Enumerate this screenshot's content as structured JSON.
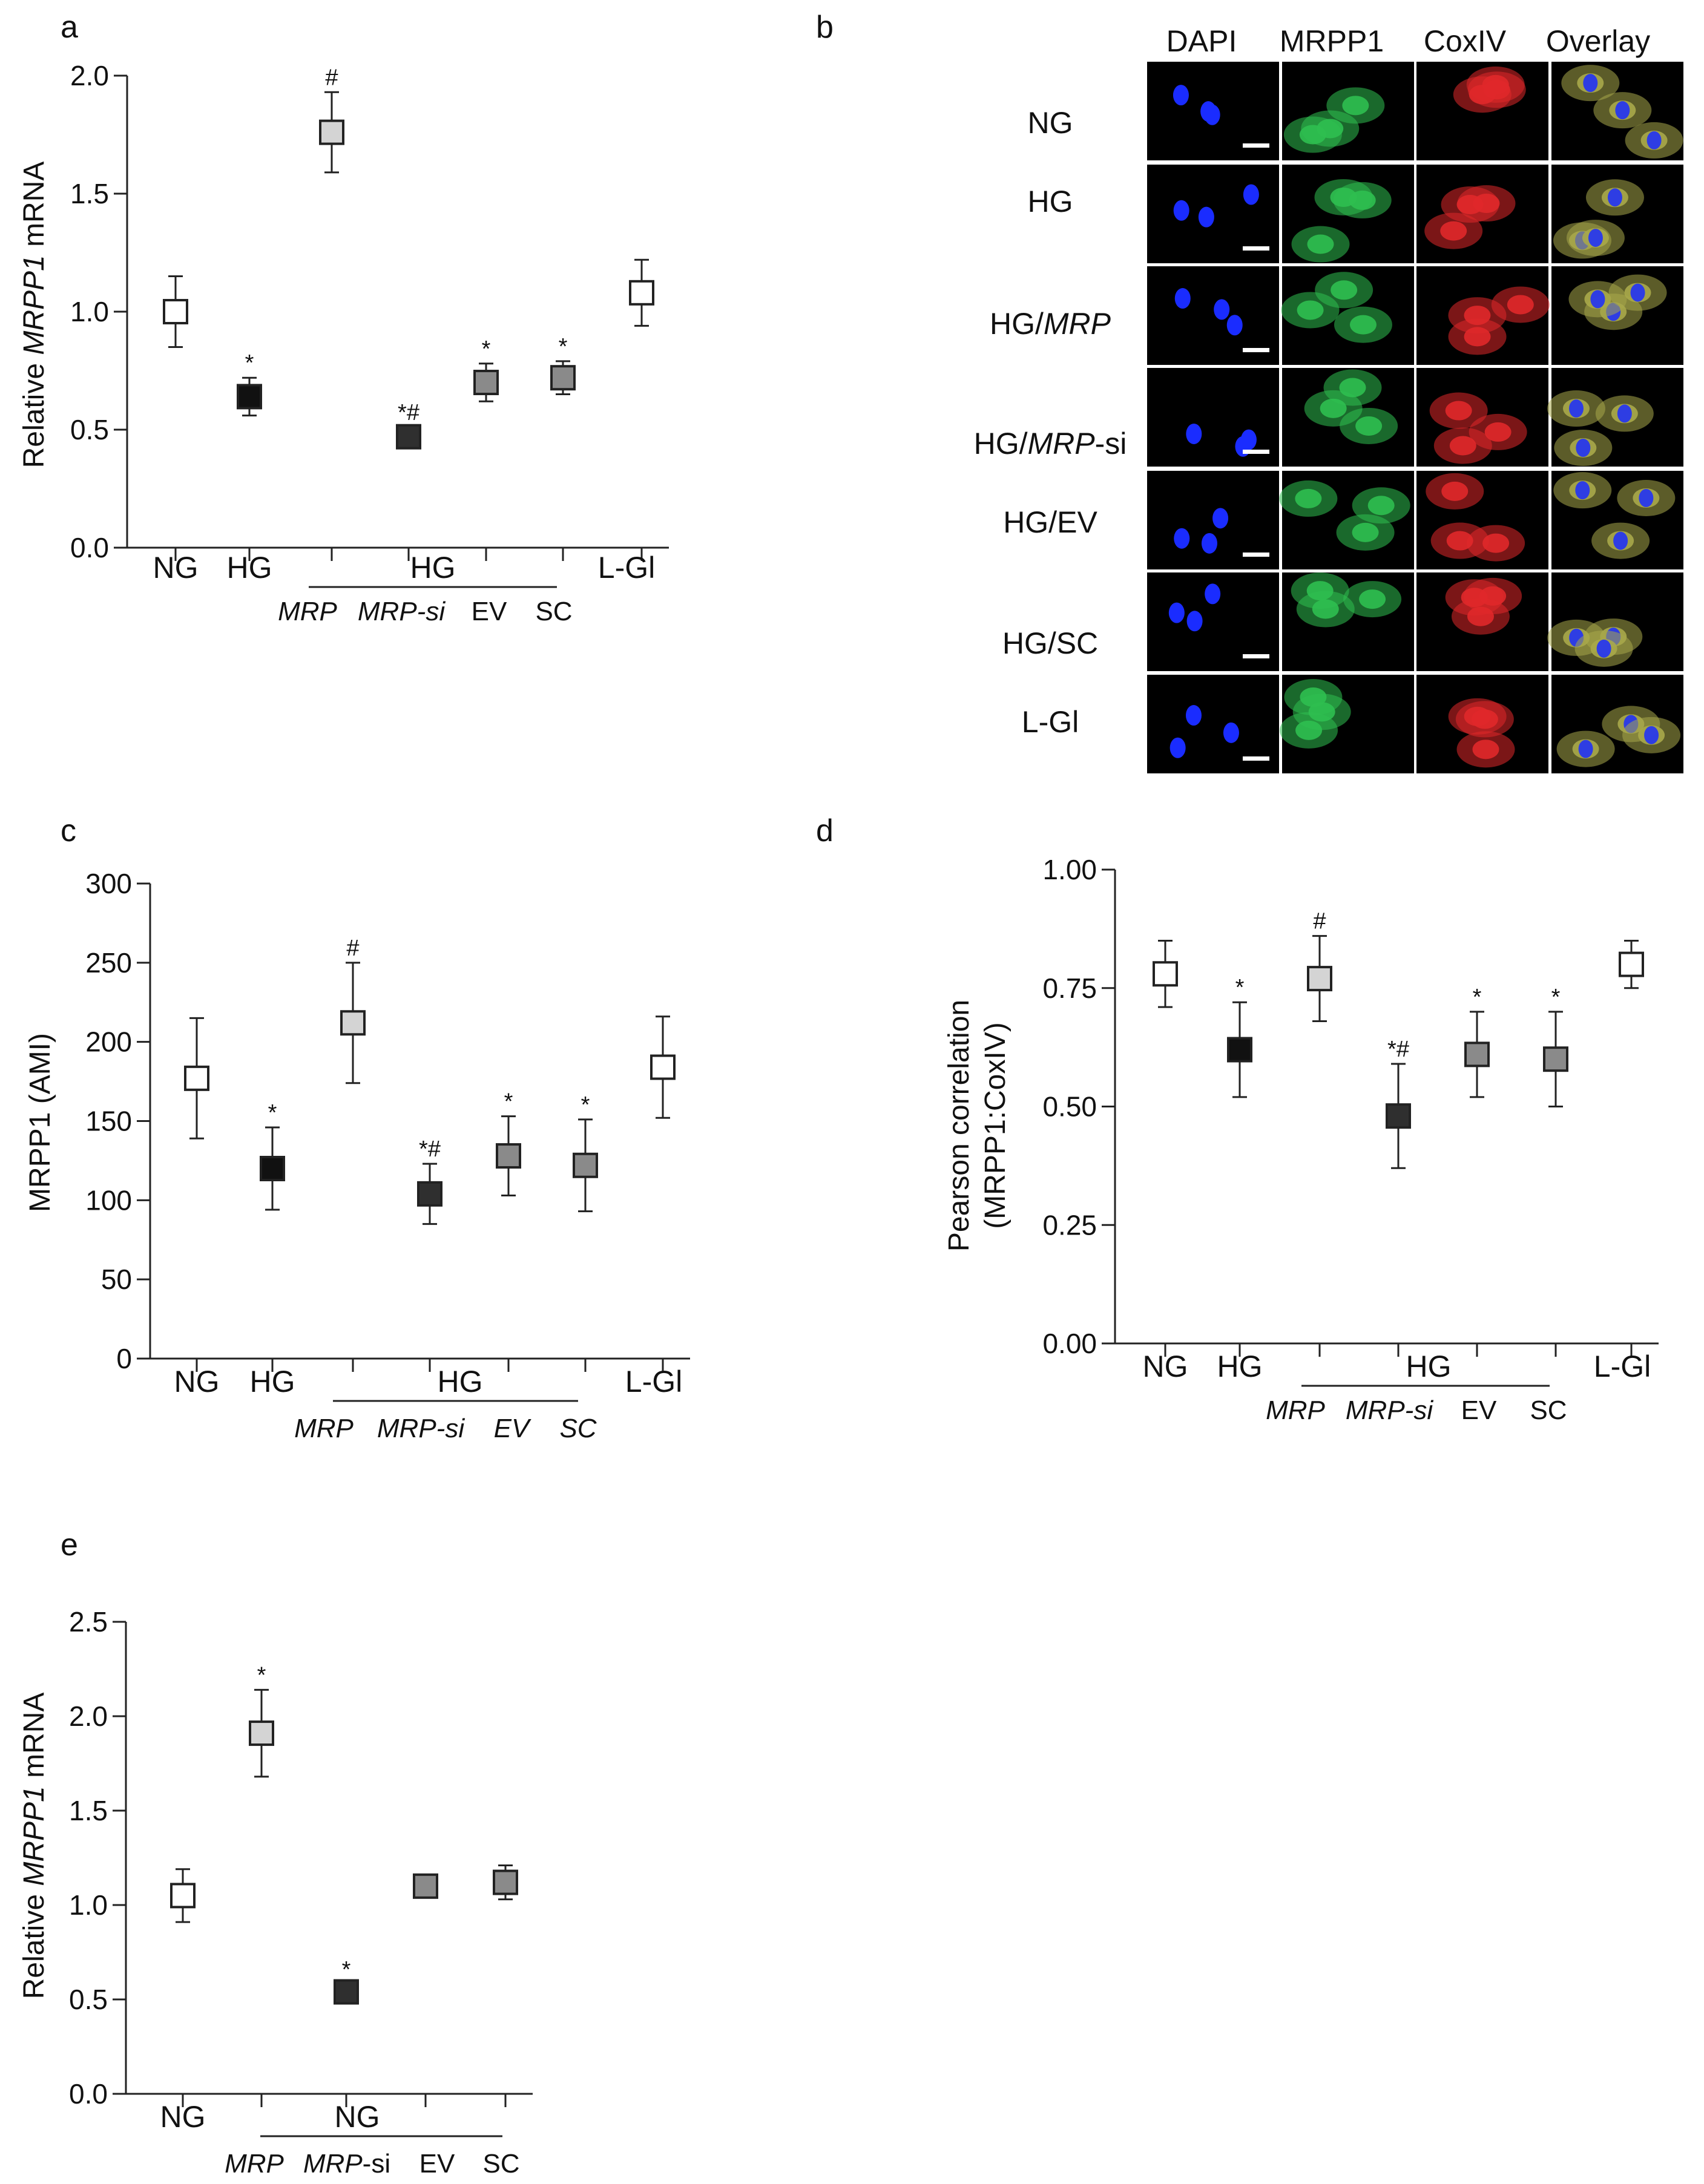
{
  "panels": {
    "a": {
      "letter": "a",
      "ylabel_pre": "Relative ",
      "ylabel_gene": "MRPP1",
      "ylabel_post": " mRNA",
      "yticks": [
        "0.0",
        "0.5",
        "1.0",
        "1.5",
        "2.0"
      ],
      "group_label": "HG",
      "sublabels": [
        "MRP",
        "MRP-si",
        "EV",
        "SC"
      ],
      "cats": [
        "NG",
        "HG",
        "L-Gl"
      ]
    },
    "b": {
      "letter": "b",
      "col_headers": [
        "DAPI",
        "MRPP1",
        "CoxIV",
        "Overlay"
      ],
      "rows": [
        "NG",
        "HG",
        "HG/MRP",
        "HG/MRP-si",
        "HG/EV",
        "HG/SC",
        "L-Gl"
      ]
    },
    "c": {
      "letter": "c",
      "ylabel": "MRPP1 (AMI)",
      "yticks": [
        "0",
        "50",
        "100",
        "150",
        "200",
        "250",
        "300"
      ],
      "group_label": "HG",
      "sublabels": [
        "MRP",
        "MRP-si",
        "EV",
        "SC"
      ],
      "cats": [
        "NG",
        "HG",
        "L-Gl"
      ]
    },
    "d": {
      "letter": "d",
      "ylabel1": "Pearson correlation",
      "ylabel2": "(MRPP1:CoxIV)",
      "yticks": [
        "0.00",
        "0.25",
        "0.50",
        "0.75",
        "1.00"
      ],
      "group_label": "HG",
      "sublabels": [
        "MRP",
        "MRP-si",
        "EV",
        "SC"
      ],
      "cats": [
        "NG",
        "HG",
        "L-Gl"
      ]
    },
    "e": {
      "letter": "e",
      "ylabel_pre": "Relative ",
      "ylabel_gene": "MRPP1",
      "ylabel_post": " mRNA",
      "yticks": [
        "0.0",
        "0.5",
        "1.0",
        "1.5",
        "2.0",
        "2.5"
      ],
      "group_label": "NG",
      "sublabels": [
        "MRP",
        "MRP-si",
        "EV",
        "SC"
      ],
      "cats": [
        "NG"
      ]
    }
  },
  "chart_data": [
    {
      "panel": "a",
      "type": "scatter",
      "ylabel": "Relative MRPP1 mRNA",
      "ylim": [
        0,
        2.0
      ],
      "categories": [
        "NG",
        "HG",
        "HG/MRP",
        "HG/MRP-si",
        "HG/EV",
        "HG/SC",
        "L-Gl"
      ],
      "values": [
        1.0,
        0.64,
        1.76,
        0.47,
        0.7,
        0.72,
        1.08
      ],
      "errors": [
        0.15,
        0.08,
        0.17,
        0.04,
        0.08,
        0.07,
        0.14
      ],
      "annotations": [
        "",
        "*",
        "#",
        "*#",
        "*",
        "*",
        ""
      ],
      "colors": [
        "#ffffff",
        "#111111",
        "#d4d4d4",
        "#2f2f2f",
        "#8a8a8a",
        "#8a8a8a",
        "#ffffff"
      ]
    },
    {
      "panel": "c",
      "type": "scatter",
      "ylabel": "MRPP1 (AMI)",
      "ylim": [
        0,
        300
      ],
      "categories": [
        "NG",
        "HG",
        "HG/MRP",
        "HG/MRP-si",
        "HG/EV",
        "HG/SC",
        "L-Gl"
      ],
      "values": [
        177,
        120,
        212,
        104,
        128,
        122,
        184
      ],
      "errors": [
        38,
        26,
        38,
        19,
        25,
        29,
        32
      ],
      "annotations": [
        "",
        "*",
        "#",
        "*#",
        "*",
        "*",
        ""
      ],
      "colors": [
        "#ffffff",
        "#111111",
        "#d4d4d4",
        "#2f2f2f",
        "#8a8a8a",
        "#8a8a8a",
        "#ffffff"
      ]
    },
    {
      "panel": "d",
      "type": "scatter",
      "ylabel": "Pearson correlation (MRPP1:CoxIV)",
      "ylim": [
        0,
        1.0
      ],
      "categories": [
        "NG",
        "HG",
        "HG/MRP",
        "HG/MRP-si",
        "HG/EV",
        "HG/SC",
        "L-Gl"
      ],
      "values": [
        0.78,
        0.62,
        0.77,
        0.48,
        0.61,
        0.6,
        0.8
      ],
      "errors": [
        0.07,
        0.1,
        0.09,
        0.11,
        0.09,
        0.1,
        0.05
      ],
      "annotations": [
        "",
        "*",
        "#",
        "*#",
        "*",
        "*",
        ""
      ],
      "colors": [
        "#ffffff",
        "#111111",
        "#d4d4d4",
        "#2f2f2f",
        "#8a8a8a",
        "#8a8a8a",
        "#ffffff"
      ]
    },
    {
      "panel": "e",
      "type": "scatter",
      "ylabel": "Relative MRPP1 mRNA",
      "ylim": [
        0,
        2.5
      ],
      "categories": [
        "NG",
        "NG/MRP",
        "NG/MRP-si",
        "NG/EV",
        "NG/SC"
      ],
      "values": [
        1.05,
        1.91,
        0.54,
        1.1,
        1.12
      ],
      "errors": [
        0.14,
        0.23,
        0.04,
        0.04,
        0.09
      ],
      "annotations": [
        "",
        "*",
        "*",
        "",
        ""
      ],
      "colors": [
        "#ffffff",
        "#d4d4d4",
        "#2f2f2f",
        "#8a8a8a",
        "#8a8a8a"
      ]
    }
  ],
  "micrograph_colors": {
    "DAPI": "#1a2cff",
    "MRPP1": "#2fbf50",
    "CoxIV": "#e0282a",
    "Overlay": "#a8a84a"
  }
}
